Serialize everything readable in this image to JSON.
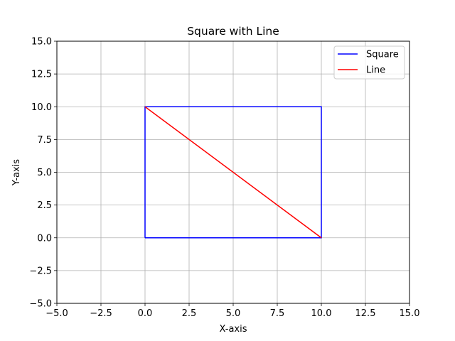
{
  "chart_data": {
    "type": "line",
    "title": "Square with Line",
    "xlabel": "X-axis",
    "ylabel": "Y-axis",
    "xlim": [
      -5,
      15
    ],
    "ylim": [
      -5,
      15
    ],
    "xticks": [
      -5,
      -2.5,
      0,
      2.5,
      5,
      7.5,
      10,
      12.5,
      15
    ],
    "yticks": [
      -5,
      -2.5,
      0,
      2.5,
      5,
      7.5,
      10,
      12.5,
      15
    ],
    "xtick_labels": [
      "−5.0",
      "−2.5",
      "0.0",
      "2.5",
      "5.0",
      "7.5",
      "10.0",
      "12.5",
      "15.0"
    ],
    "ytick_labels": [
      "−5.0",
      "−2.5",
      "0.0",
      "2.5",
      "5.0",
      "7.5",
      "10.0",
      "12.5",
      "15.0"
    ],
    "grid": true,
    "legend_position": "top-right",
    "series": [
      {
        "name": "Square",
        "color": "#0000ff",
        "x": [
          0,
          10,
          10,
          0,
          0
        ],
        "y": [
          0,
          0,
          10,
          10,
          0
        ]
      },
      {
        "name": "Line",
        "color": "#ff0000",
        "x": [
          0,
          10
        ],
        "y": [
          10,
          0
        ]
      }
    ]
  }
}
